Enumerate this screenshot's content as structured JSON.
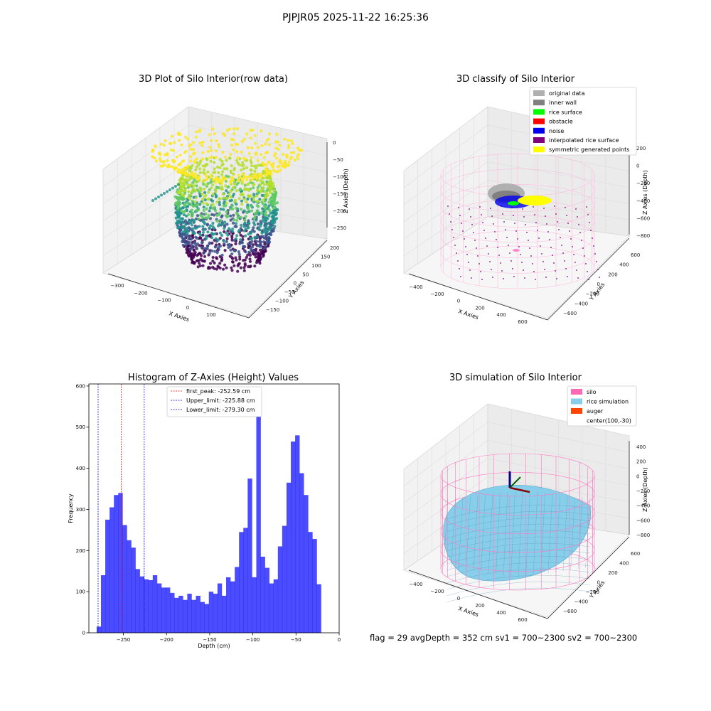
{
  "figure": {
    "suptitle": "PJPJR05 2025-11-22 16:25:36"
  },
  "panels": {
    "raw": {
      "title": "3D Plot of Silo Interior(row data)",
      "xlabel": "X Axies",
      "ylabel": "Y Axies",
      "zlabel": "Z Axies (Depth)",
      "xticks": [
        "-300",
        "-200",
        "-100",
        "0",
        "100"
      ],
      "yticks": [
        "-150",
        "-100",
        "-50",
        "0",
        "50",
        "100",
        "150",
        "200"
      ],
      "zticks": [
        "0",
        "-50",
        "-100",
        "-150",
        "-200",
        "-250"
      ]
    },
    "classify": {
      "title": "3D classify of Silo Interior",
      "xlabel": "X Axies",
      "ylabel": "Y Axies",
      "zlabel": "Z Axies (Depth)",
      "xticks": [
        "-400",
        "-200",
        "0",
        "200",
        "400",
        "600"
      ],
      "yticks": [
        "-600",
        "-400",
        "-200",
        "0",
        "200",
        "400",
        "600"
      ],
      "zticks": [
        "200",
        "0",
        "-200",
        "-400",
        "-600",
        "-800"
      ],
      "legend": [
        {
          "label": "original data",
          "color": "#b0b0b0"
        },
        {
          "label": "inner wall",
          "color": "#808080"
        },
        {
          "label": "rice surface",
          "color": "#00ff00"
        },
        {
          "label": "obstacle",
          "color": "#ff0000"
        },
        {
          "label": "noise",
          "color": "#0000ee"
        },
        {
          "label": "interpolated rice surface",
          "color": "#800080"
        },
        {
          "label": "symmetric generated points",
          "color": "#ffff00"
        }
      ]
    },
    "sim": {
      "title": "3D simulation of Silo Interior",
      "xlabel": "X Axies",
      "ylabel": "Y Axies",
      "zlabel": "Z Axies (Depth)",
      "xticks": [
        "-400",
        "-200",
        "0",
        "200",
        "400",
        "600"
      ],
      "yticks": [
        "-600",
        "-400",
        "-200",
        "0",
        "200",
        "400",
        "600"
      ],
      "zticks": [
        "400",
        "200",
        "0",
        "-200",
        "-400",
        "-600",
        "-800"
      ],
      "legend": [
        {
          "label": "silo",
          "color": "#ff69b4"
        },
        {
          "label": "rice simulation",
          "color": "#87ceeb"
        },
        {
          "label": "auger",
          "color": "#ff4500"
        },
        {
          "label": "center(100,-30)",
          "color": ""
        }
      ],
      "footer": "flag = 29  avgDepth = 352 cm  sv1 = 700~2300  sv2 = 700~2300"
    }
  },
  "chart_data": [
    {
      "type": "bar",
      "title": "Histogram of Z-Axies (Height) Values",
      "xlabel": "Depth (cm)",
      "ylabel": "Frequency",
      "xlim": [
        -290,
        0
      ],
      "ylim": [
        0,
        605
      ],
      "xticks": [
        -250,
        -200,
        -150,
        -100,
        -50,
        0
      ],
      "xtick_labels": [
        "−250",
        "−200",
        "−150",
        "−100",
        "−50",
        "0"
      ],
      "yticks": [
        0,
        100,
        200,
        300,
        400,
        500,
        600
      ],
      "bin_start": -281,
      "bin_width": 5,
      "counts": [
        15,
        140,
        275,
        305,
        335,
        340,
        262,
        225,
        207,
        155,
        137,
        130,
        128,
        140,
        120,
        110,
        110,
        97,
        85,
        90,
        80,
        95,
        80,
        90,
        75,
        70,
        100,
        95,
        120,
        90,
        135,
        125,
        160,
        245,
        255,
        375,
        135,
        578,
        185,
        158,
        120,
        130,
        210,
        260,
        365,
        465,
        480,
        388,
        335,
        245,
        228,
        118
      ],
      "bar_color": "#0000ff",
      "lines": [
        {
          "label": "first_peak: -252.59 cm",
          "x": -252.59,
          "color": "#ff0000"
        },
        {
          "label": "Upper_limit: -225.88 cm",
          "x": -225.88,
          "color": "#0000cc"
        },
        {
          "label": "Lower_limit: -279.30 cm",
          "x": -279.3,
          "color": "#0000cc"
        }
      ],
      "legend_position": "top-center",
      "grid": false
    }
  ]
}
